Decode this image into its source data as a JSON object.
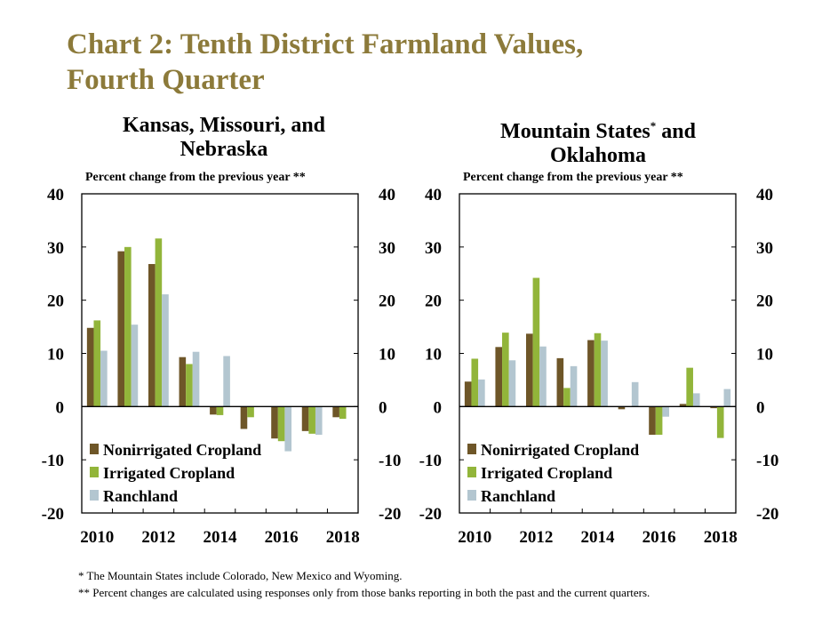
{
  "title_line1": "Chart 2: Tenth District Farmland Values,",
  "title_line2": "Fourth Quarter",
  "colors": {
    "title": "#8c7a3a",
    "nonirrigated": "#6e5628",
    "irrigated": "#92b53a",
    "ranchland": "#b3c6d0"
  },
  "footnotes": [
    "* The Mountain States include Colorado, New Mexico and Wyoming.",
    "** Percent changes are calculated using responses only from those banks reporting in both the past and the current quarters."
  ],
  "panels": [
    {
      "title_line1": "Kansas, Missouri, and",
      "title_line2": "Nebraska",
      "subtitle": "Percent change from the previous year **"
    },
    {
      "title_line1": "Mountain States",
      "title_sup": "*",
      "title_line1_end": " and",
      "title_line2": "Oklahoma",
      "subtitle": "Percent change from the previous year **"
    }
  ],
  "chart_data": [
    {
      "type": "bar",
      "title": "Kansas, Missouri, and Nebraska",
      "ylabel": "Percent change from the previous year **",
      "ylim": [
        -20,
        40
      ],
      "yticks": [
        40,
        30,
        20,
        10,
        0,
        -10,
        -20
      ],
      "categories": [
        "2010",
        "2011",
        "2012",
        "2013",
        "2014",
        "2015",
        "2016",
        "2017",
        "2018"
      ],
      "xtick_labels": [
        "2010",
        "2012",
        "2014",
        "2016",
        "2018"
      ],
      "legend": "bottom-left",
      "series": [
        {
          "name": "Nonirrigated Cropland",
          "color": "#6e5628",
          "values": [
            14.8,
            29.2,
            26.8,
            9.3,
            -1.5,
            -4.2,
            -6.0,
            -4.6,
            -2.0
          ]
        },
        {
          "name": "Irrigated Cropland",
          "color": "#92b53a",
          "values": [
            16.2,
            30.0,
            31.6,
            8.0,
            -1.6,
            -2.0,
            -6.5,
            -5.1,
            -2.3
          ]
        },
        {
          "name": "Ranchland",
          "color": "#b3c6d0",
          "values": [
            10.5,
            15.4,
            21.1,
            10.3,
            9.5,
            0,
            -8.4,
            -5.3,
            0
          ]
        }
      ]
    },
    {
      "type": "bar",
      "title": "Mountain States* and Oklahoma",
      "ylabel": "Percent change from the previous year **",
      "ylim": [
        -20,
        40
      ],
      "yticks": [
        40,
        30,
        20,
        10,
        0,
        -10,
        -20
      ],
      "categories": [
        "2010",
        "2011",
        "2012",
        "2013",
        "2014",
        "2015",
        "2016",
        "2017",
        "2018"
      ],
      "xtick_labels": [
        "2010",
        "2012",
        "2014",
        "2016",
        "2018"
      ],
      "legend": "bottom-left",
      "series": [
        {
          "name": "Nonirrigated Cropland",
          "color": "#6e5628",
          "values": [
            4.7,
            11.2,
            13.7,
            9.1,
            12.5,
            -0.5,
            -5.3,
            0.5,
            -0.3
          ]
        },
        {
          "name": "Irrigated Cropland",
          "color": "#92b53a",
          "values": [
            9.0,
            13.9,
            24.2,
            3.5,
            13.8,
            0,
            -5.3,
            7.3,
            -5.9
          ]
        },
        {
          "name": "Ranchland",
          "color": "#b3c6d0",
          "values": [
            5.1,
            8.7,
            11.3,
            7.6,
            12.4,
            4.6,
            -1.9,
            2.5,
            3.3
          ]
        }
      ]
    }
  ]
}
